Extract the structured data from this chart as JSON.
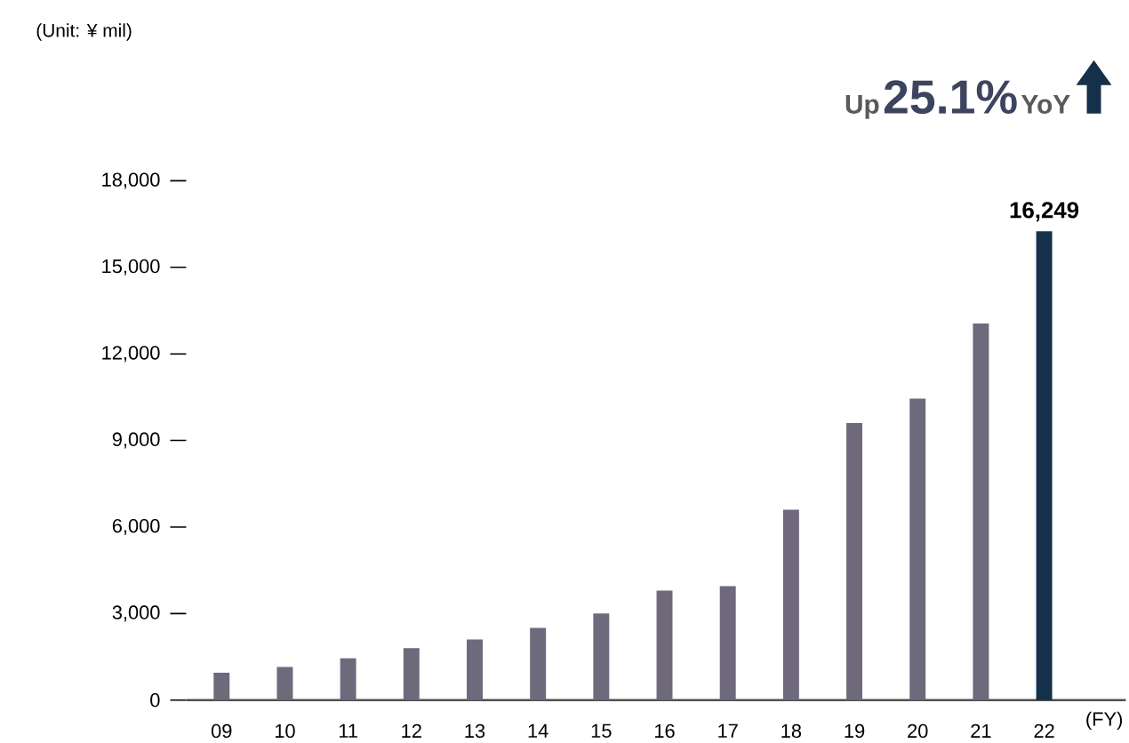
{
  "chart_data": {
    "type": "bar",
    "categories": [
      "09",
      "10",
      "11",
      "12",
      "13",
      "14",
      "15",
      "16",
      "17",
      "18",
      "19",
      "20",
      "21",
      "22"
    ],
    "values": [
      950,
      1150,
      1450,
      1800,
      2100,
      2500,
      3000,
      3800,
      3950,
      6600,
      9600,
      10450,
      13050,
      16249
    ],
    "colors": [
      "#6e6a7c",
      "#6e6a7c",
      "#6e6a7c",
      "#6e6a7c",
      "#6e6a7c",
      "#6e6a7c",
      "#6e6a7c",
      "#6e6a7c",
      "#6e6a7c",
      "#6e6a7c",
      "#6e6a7c",
      "#6e6a7c",
      "#6e6a7c",
      "#14304a"
    ],
    "value_labels": [
      null,
      null,
      null,
      null,
      null,
      null,
      null,
      null,
      null,
      null,
      null,
      null,
      null,
      "16,249"
    ],
    "xlabel": "(FY)",
    "ylim": [
      0,
      18000
    ],
    "yticks": [
      {
        "value": 0,
        "label": "0"
      },
      {
        "value": 3000,
        "label": "3,000"
      },
      {
        "value": 6000,
        "label": "6,000"
      },
      {
        "value": 9000,
        "label": "9,000"
      },
      {
        "value": 12000,
        "label": "12,000"
      },
      {
        "value": 15000,
        "label": "15,000"
      },
      {
        "value": 18000,
        "label": "18,000"
      }
    ],
    "annotations": [
      "(Unit: ¥ mil)",
      "Up",
      "25.1%",
      "YoY"
    ]
  }
}
